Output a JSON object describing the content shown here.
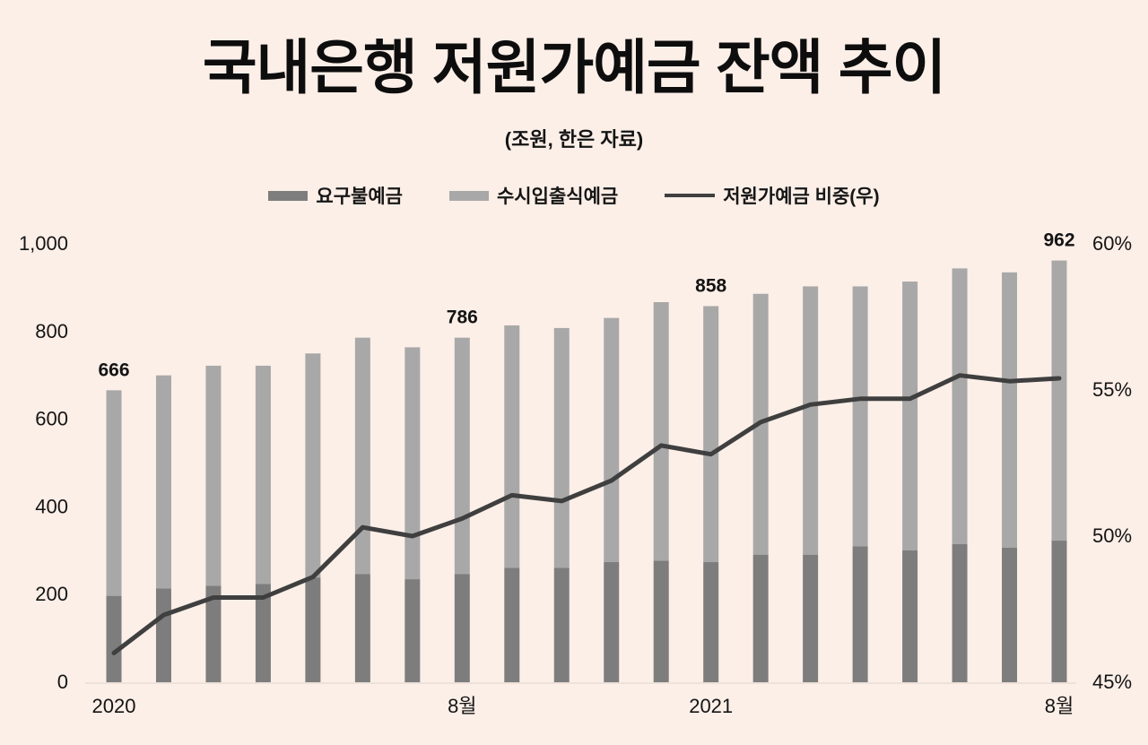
{
  "title": "국내은행 저원가예금 잔액 추이",
  "subtitle": "(조원, 한은 자료)",
  "legend": {
    "items": [
      {
        "label": "요구불예금",
        "color": "#7d7d7d",
        "kind": "bar"
      },
      {
        "label": "수시입출식예금",
        "color": "#a8a8a8",
        "kind": "bar"
      },
      {
        "label": "저원가예금 비중(우)",
        "color": "#3f3f3f",
        "kind": "line"
      }
    ]
  },
  "colors": {
    "background": "#fcefe8",
    "bar_demand": "#7d7d7d",
    "bar_mmda": "#a8a8a8",
    "ratio_line": "#3f3f3f",
    "baseline": "#ede1d9",
    "text": "#141414"
  },
  "chart_data": {
    "type": "bar",
    "subtype": "stacked-bars-with-line",
    "n_points": 20,
    "series": [
      {
        "name": "요구불예금",
        "type": "bar",
        "axis": "left",
        "values": [
          197,
          214,
          220,
          224,
          239,
          247,
          235,
          247,
          261,
          261,
          274,
          277,
          274,
          291,
          291,
          310,
          301,
          315,
          307,
          323
        ]
      },
      {
        "name": "수시입출식예금",
        "type": "bar",
        "axis": "left",
        "values": [
          469,
          486,
          502,
          498,
          511,
          539,
          529,
          539,
          553,
          547,
          557,
          590,
          584,
          595,
          612,
          593,
          613,
          629,
          628,
          639
        ]
      },
      {
        "name": "저원가예금 비중(우)",
        "type": "line",
        "axis": "right",
        "values": [
          46.0,
          47.3,
          47.9,
          47.9,
          48.6,
          50.3,
          50.0,
          50.6,
          51.4,
          51.2,
          51.9,
          53.1,
          52.8,
          53.9,
          54.5,
          54.7,
          54.7,
          55.5,
          55.3,
          55.4
        ]
      }
    ],
    "totals": [
      666,
      700,
      722,
      722,
      750,
      786,
      764,
      786,
      814,
      808,
      831,
      867,
      858,
      886,
      903,
      903,
      914,
      944,
      935,
      962
    ],
    "data_labels": [
      {
        "index": 0,
        "text": "666"
      },
      {
        "index": 7,
        "text": "786"
      },
      {
        "index": 12,
        "text": "858"
      },
      {
        "index": 19,
        "text": "962"
      }
    ],
    "x_tick_labels": [
      {
        "index": 0,
        "text": "2020"
      },
      {
        "index": 7,
        "text": "8월"
      },
      {
        "index": 12,
        "text": "2021"
      },
      {
        "index": 19,
        "text": "8월"
      }
    ],
    "left_axis": {
      "min": 0,
      "max": 1000,
      "tick_values": [
        0,
        200,
        400,
        600,
        800,
        1000
      ],
      "tick_labels": [
        "0",
        "200",
        "400",
        "600",
        "800",
        "1,000"
      ]
    },
    "right_axis": {
      "min": 45,
      "max": 60,
      "tick_values": [
        45,
        50,
        55,
        60
      ],
      "tick_labels": [
        "45%",
        "50%",
        "55%",
        "60%"
      ]
    },
    "grid": false,
    "legend_position": "top"
  }
}
